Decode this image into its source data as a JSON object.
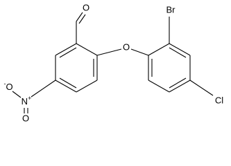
{
  "atoms": [
    {
      "label": "O"
    },
    {
      "label": "O"
    },
    {
      "label": "Br"
    },
    {
      "label": "Cl"
    },
    {
      "label": "N",
      "charge": "+"
    },
    {
      "label": "O",
      "charge": "-"
    },
    {
      "label": "O"
    }
  ]
}
